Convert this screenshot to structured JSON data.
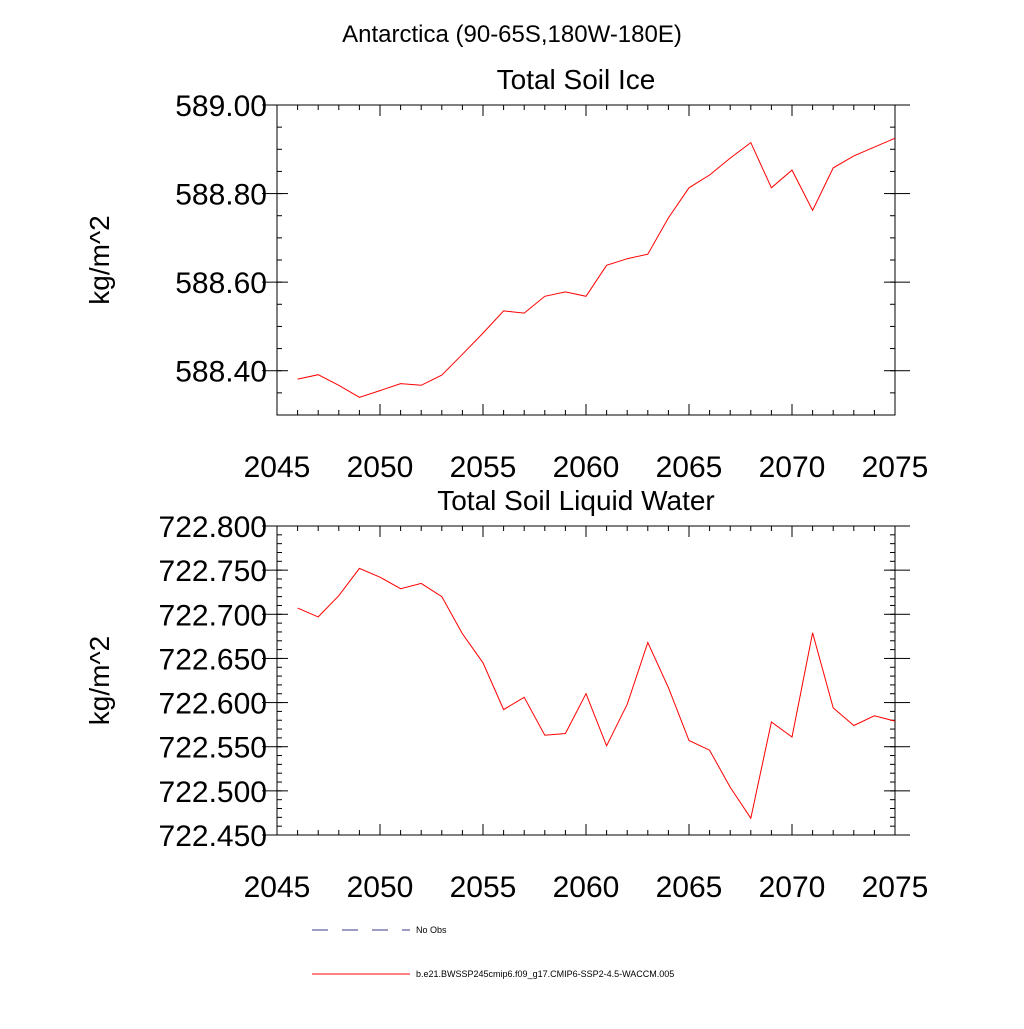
{
  "figure": {
    "title": "Antarctica (90-65S,180W-180E)"
  },
  "colors": {
    "model": "#ff0000",
    "obs": "#3a3a8c",
    "axis": "#000000"
  },
  "chart_data": [
    {
      "type": "line",
      "title": "Total Soil Ice",
      "xlabel": "",
      "ylabel": "kg/m^2",
      "xlim": [
        2045,
        2075
      ],
      "ylim": [
        588.3,
        589.0
      ],
      "x_ticks": [
        2045,
        2050,
        2055,
        2060,
        2065,
        2070,
        2075
      ],
      "x_tick_labels": [
        "2045",
        "2050",
        "2055",
        "2060",
        "2065",
        "2070",
        "2075"
      ],
      "y_ticks": [
        588.4,
        588.6,
        588.8,
        589.0
      ],
      "y_tick_labels": [
        "588.40",
        "588.60",
        "588.80",
        "589.00"
      ],
      "x_minor_step": 1,
      "y_minor_step": 0.05,
      "series": [
        {
          "name": "b.e21.BWSSP245cmip6.f09_g17.CMIP6-SSP2-4.5-WACCM.005",
          "x": [
            2046,
            2047,
            2048,
            2049,
            2050,
            2051,
            2052,
            2053,
            2054,
            2055,
            2056,
            2057,
            2058,
            2059,
            2060,
            2061,
            2062,
            2063,
            2064,
            2065,
            2066,
            2067,
            2068,
            2069,
            2070,
            2071,
            2072,
            2073,
            2074,
            2075
          ],
          "values": [
            588.381,
            588.391,
            588.367,
            588.34,
            588.355,
            588.371,
            588.367,
            588.39,
            588.437,
            588.485,
            588.535,
            588.53,
            588.568,
            588.578,
            588.568,
            588.638,
            588.653,
            588.663,
            588.745,
            588.813,
            588.842,
            588.88,
            588.915,
            588.813,
            588.853,
            588.762,
            588.858,
            588.885,
            588.905,
            588.925
          ]
        }
      ]
    },
    {
      "type": "line",
      "title": "Total Soil Liquid Water",
      "xlabel": "",
      "ylabel": "kg/m^2",
      "xlim": [
        2045,
        2075
      ],
      "ylim": [
        722.45,
        722.8
      ],
      "x_ticks": [
        2045,
        2050,
        2055,
        2060,
        2065,
        2070,
        2075
      ],
      "x_tick_labels": [
        "2045",
        "2050",
        "2055",
        "2060",
        "2065",
        "2070",
        "2075"
      ],
      "y_ticks": [
        722.45,
        722.5,
        722.55,
        722.6,
        722.65,
        722.7,
        722.75,
        722.8
      ],
      "y_tick_labels": [
        "722.450",
        "722.500",
        "722.550",
        "722.600",
        "722.650",
        "722.700",
        "722.750",
        "722.800"
      ],
      "x_minor_step": 1,
      "y_minor_step": 0.01,
      "series": [
        {
          "name": "b.e21.BWSSP245cmip6.f09_g17.CMIP6-SSP2-4.5-WACCM.005",
          "x": [
            2046,
            2047,
            2048,
            2049,
            2050,
            2051,
            2052,
            2053,
            2054,
            2055,
            2056,
            2057,
            2058,
            2059,
            2060,
            2061,
            2062,
            2063,
            2064,
            2065,
            2066,
            2067,
            2068,
            2069,
            2070,
            2071,
            2072,
            2073,
            2074,
            2075
          ],
          "values": [
            722.707,
            722.697,
            722.721,
            722.752,
            722.742,
            722.729,
            722.735,
            722.72,
            722.678,
            722.645,
            722.592,
            722.606,
            722.563,
            722.565,
            722.61,
            722.551,
            722.598,
            722.668,
            722.617,
            722.557,
            722.546,
            722.504,
            722.469,
            722.578,
            722.561,
            722.679,
            722.594,
            722.574,
            722.585,
            722.579
          ]
        }
      ]
    }
  ],
  "legend": {
    "items": [
      {
        "label": "No Obs",
        "style": "dashed",
        "color_key": "obs"
      },
      {
        "label": "b.e21.BWSSP245cmip6.f09_g17.CMIP6-SSP2-4.5-WACCM.005",
        "style": "solid",
        "color_key": "model"
      }
    ]
  }
}
